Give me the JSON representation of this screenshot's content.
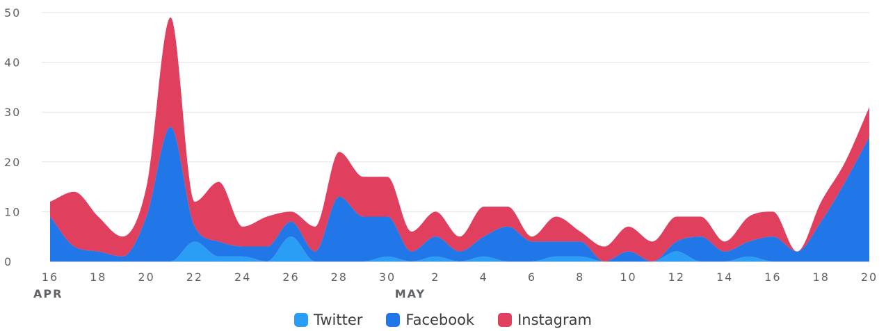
{
  "chart_data": {
    "type": "area",
    "stacked": true,
    "x": [
      "Apr 16",
      "Apr 17",
      "Apr 18",
      "Apr 19",
      "Apr 20",
      "Apr 21",
      "Apr 22",
      "Apr 23",
      "Apr 24",
      "Apr 25",
      "Apr 26",
      "Apr 27",
      "Apr 28",
      "Apr 29",
      "Apr 30",
      "May 1",
      "May 2",
      "May 3",
      "May 4",
      "May 5",
      "May 6",
      "May 7",
      "May 8",
      "May 9",
      "May 10",
      "May 11",
      "May 12",
      "May 13",
      "May 14",
      "May 15",
      "May 16",
      "May 17",
      "May 18",
      "May 19",
      "May 20"
    ],
    "series": [
      {
        "name": "Twitter",
        "color": "#2a9df4",
        "values": [
          0,
          0,
          0,
          0,
          0,
          0,
          4,
          1,
          1,
          0,
          5,
          0,
          0,
          0,
          1,
          0,
          1,
          0,
          1,
          0,
          0,
          1,
          1,
          0,
          0,
          0,
          2,
          0,
          0,
          1,
          0,
          0,
          0,
          0,
          0
        ]
      },
      {
        "name": "Facebook",
        "color": "#2176e8",
        "values": [
          9,
          3,
          2,
          1,
          9,
          27,
          3,
          3,
          2,
          3,
          3,
          2,
          13,
          9,
          8,
          2,
          4,
          2,
          4,
          7,
          4,
          3,
          3,
          0,
          2,
          0,
          2,
          5,
          2,
          3,
          5,
          2,
          8,
          16,
          25
        ]
      },
      {
        "name": "Instagram",
        "color": "#e0405e",
        "values": [
          3,
          11,
          7,
          4,
          6,
          22,
          5,
          12,
          4,
          6,
          2,
          5,
          9,
          8,
          8,
          4,
          5,
          3,
          6,
          4,
          1,
          5,
          2,
          3,
          5,
          4,
          5,
          4,
          2,
          5,
          5,
          0,
          4,
          4,
          6
        ]
      }
    ],
    "ylim": [
      0,
      50
    ],
    "yticks": [
      "0",
      "10",
      "20",
      "30",
      "40",
      "50"
    ],
    "xticks": [
      "16",
      "18",
      "20",
      "22",
      "24",
      "26",
      "28",
      "30",
      "2",
      "4",
      "6",
      "8",
      "10",
      "12",
      "14",
      "16",
      "18",
      "20"
    ],
    "month_labels": [
      {
        "label": "APR",
        "at": "Apr 16"
      },
      {
        "label": "MAY",
        "at": "May 1"
      }
    ],
    "grid": true,
    "legend_position": "bottom"
  }
}
